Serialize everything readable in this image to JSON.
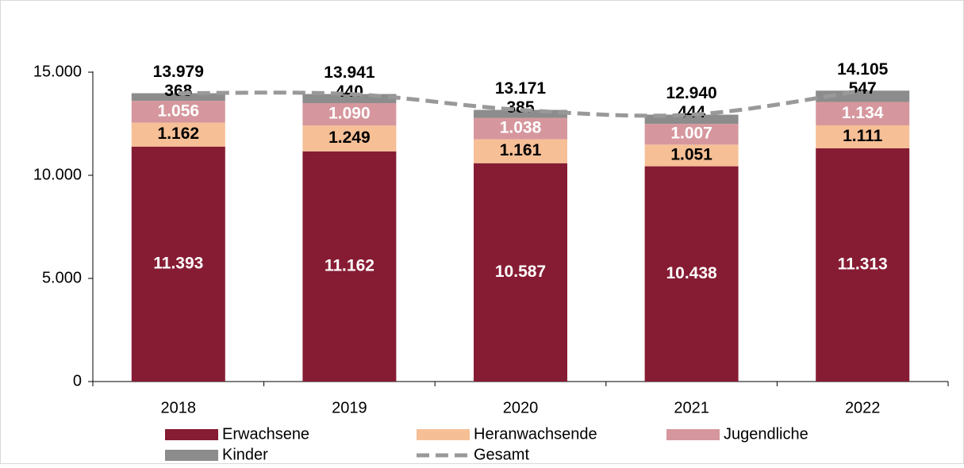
{
  "chart_data": {
    "type": "bar",
    "stacked": true,
    "categories": [
      "2018",
      "2019",
      "2020",
      "2021",
      "2022"
    ],
    "series": [
      {
        "name": "Erwachsene",
        "color": "#861c33",
        "label_color": "#ffffff",
        "values": [
          11393,
          11162,
          10587,
          10438,
          11313
        ],
        "value_labels": [
          "11.393",
          "11.162",
          "10.587",
          "10.438",
          "11.313"
        ]
      },
      {
        "name": "Heranwachsende",
        "color": "#f6bf96",
        "label_color": "#000000",
        "values": [
          1162,
          1249,
          1161,
          1051,
          1111
        ],
        "value_labels": [
          "1.162",
          "1.249",
          "1.161",
          "1.051",
          "1.111"
        ]
      },
      {
        "name": "Jugendliche",
        "color": "#d5979d",
        "label_color": "#ffffff",
        "values": [
          1056,
          1090,
          1038,
          1007,
          1134
        ],
        "value_labels": [
          "1.056",
          "1.090",
          "1.038",
          "1.007",
          "1.134"
        ]
      },
      {
        "name": "Kinder",
        "color": "#8c8c8c",
        "label_color": "#000000",
        "values": [
          368,
          440,
          385,
          444,
          547
        ]
      },
      {
        "name": "Gesamt",
        "type": "line",
        "dashed": true,
        "color": "#999999",
        "label_color": "#000000",
        "values": [
          13979,
          13941,
          13171,
          12940,
          14105
        ],
        "value_labels": [
          "13.979",
          "13.941",
          "13.171",
          "12.940",
          "14.105"
        ]
      }
    ],
    "ylim": [
      0,
      15000
    ],
    "yticks": [
      0,
      {
        "value": 5000,
        "label": "5.000"
      },
      {
        "value": 10000,
        "label": "10.000"
      },
      {
        "value": 15000,
        "label": "15.000"
      }
    ],
    "legend": "bottom"
  }
}
